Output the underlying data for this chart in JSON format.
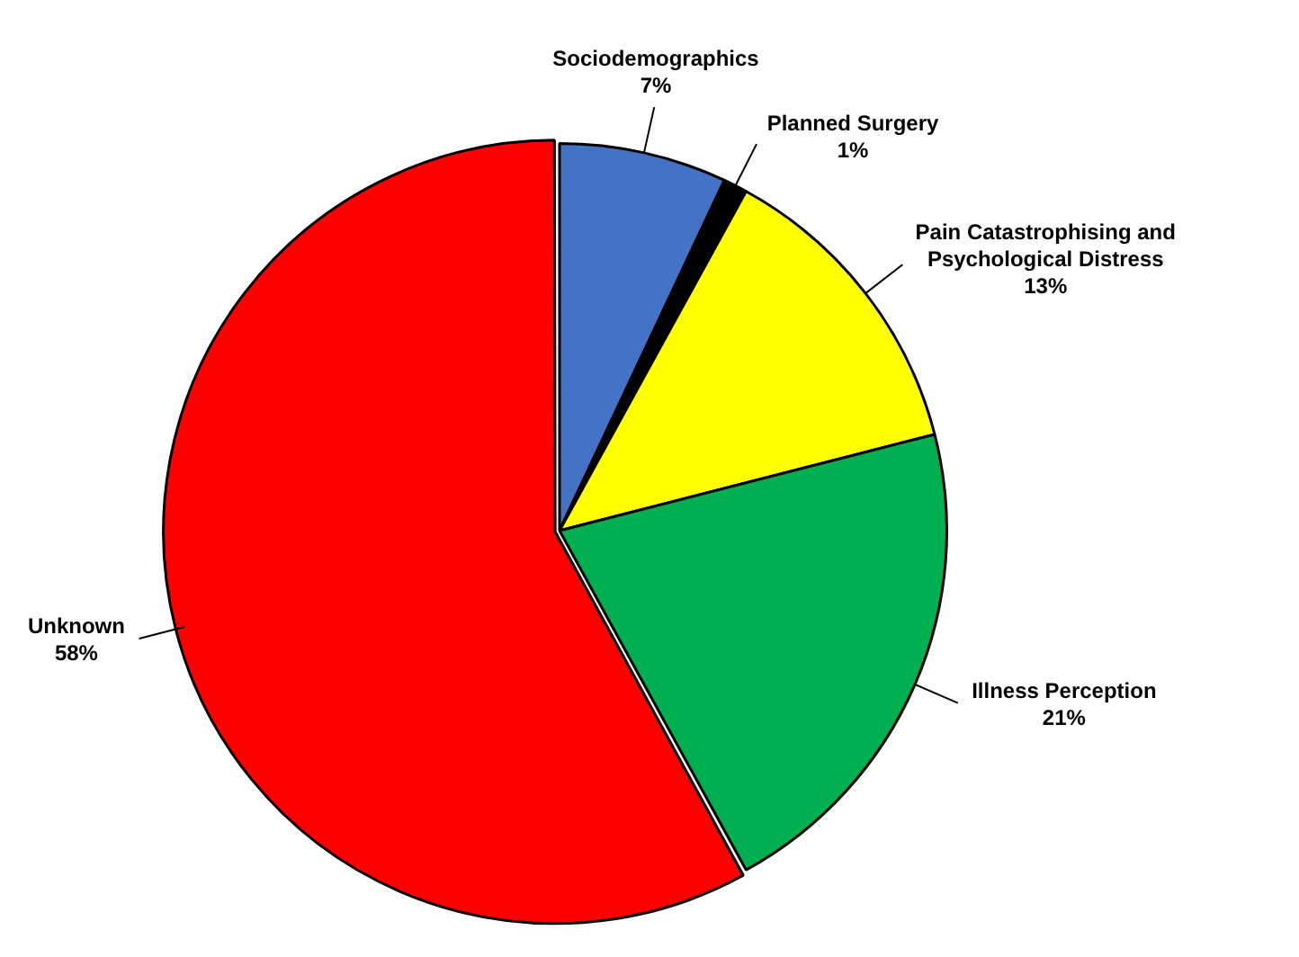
{
  "chart_data": {
    "type": "pie",
    "categories": [
      "Sociodemographics",
      "Planned Surgery",
      "Pain Catastrophising and\nPsychological Distress",
      "Illness Perception",
      "Unknown"
    ],
    "values": [
      7,
      1,
      13,
      21,
      58
    ],
    "colors": [
      "#4472c4",
      "#000000",
      "#ffff00",
      "#00b050",
      "#ff0000"
    ],
    "value_labels": [
      "7%",
      "1%",
      "13%",
      "21%",
      "58%"
    ],
    "legend": false
  }
}
